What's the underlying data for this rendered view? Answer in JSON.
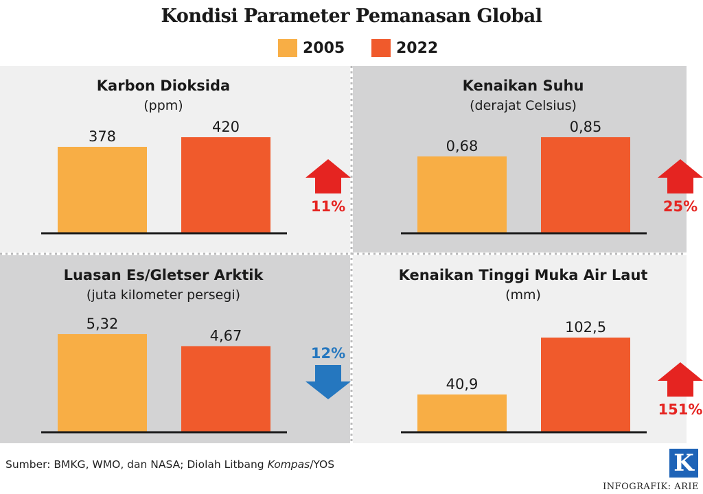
{
  "title": "Kondisi Parameter Pemanasan Global",
  "legend": [
    {
      "label": "2005",
      "color": "#f8ae45"
    },
    {
      "label": "2022",
      "color": "#f05a2c"
    }
  ],
  "chart_data": [
    {
      "type": "bar",
      "title": "Karbon Dioksida",
      "subtitle": "(ppm)",
      "categories": [
        "2005",
        "2022"
      ],
      "values": [
        378,
        420
      ],
      "value_labels": [
        "378",
        "420"
      ],
      "change": {
        "label": "11%",
        "direction": "up",
        "color": "#e52421"
      },
      "background": "#f0f0f0"
    },
    {
      "type": "bar",
      "title": "Kenaikan Suhu",
      "subtitle": "(derajat Celsius)",
      "categories": [
        "2005",
        "2022"
      ],
      "values": [
        0.68,
        0.85
      ],
      "value_labels": [
        "0,68",
        "0,85"
      ],
      "change": {
        "label": "25%",
        "direction": "up",
        "color": "#e52421"
      },
      "background": "#d3d3d4"
    },
    {
      "type": "bar",
      "title": "Luasan Es/Gletser Arktik",
      "subtitle": "(juta kilometer persegi)",
      "categories": [
        "2005",
        "2022"
      ],
      "values": [
        5.32,
        4.67
      ],
      "value_labels": [
        "5,32",
        "4,67"
      ],
      "change": {
        "label": "12%",
        "direction": "down",
        "color": "#2577bf"
      },
      "background": "#d3d3d4"
    },
    {
      "type": "bar",
      "title": "Kenaikan Tinggi Muka Air Laut",
      "subtitle": "(mm)",
      "categories": [
        "2005",
        "2022"
      ],
      "values": [
        40.9,
        102.5
      ],
      "value_labels": [
        "40,9",
        "102,5"
      ],
      "change": {
        "label": "151%",
        "direction": "up",
        "color": "#e52421"
      },
      "background": "#f0f0f0"
    }
  ],
  "source": {
    "prefix": "Sumber: BMKG, WMO, dan NASA; Diolah Litbang ",
    "italic": "Kompas",
    "suffix": "/YOS"
  },
  "logo": "K",
  "credit": "INFOGRAFIK: ARIE"
}
